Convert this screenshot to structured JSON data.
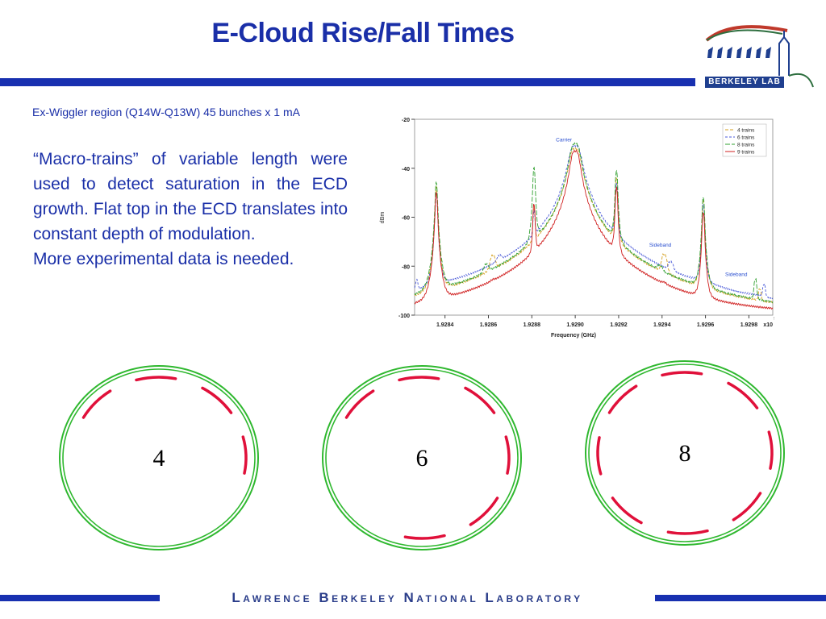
{
  "header": {
    "title": "E-Cloud Rise/Fall Times",
    "logo_text": "BERKELEY LAB"
  },
  "subtitle": "Ex-Wiggler region (Q14W-Q13W) 45 bunches x 1 mA",
  "body": {
    "paragraph_1": "“Macro-trains” of variable length were used to detect saturation in the ECD growth. Flat top in the ECD translates into constant depth of modulation.",
    "paragraph_2": "More experimental data is needed."
  },
  "chart_data": {
    "type": "line",
    "xlabel": "Frequency (GHz)",
    "ylabel": "dBm",
    "x_multiplier": "x10",
    "x_multiplier_exp": "9",
    "xlim": [
      1.92826,
      1.92991
    ],
    "ylim": [
      -100,
      -20
    ],
    "x_ticks": [
      "1.9284",
      "1.9286",
      "1.9288",
      "1.9290",
      "1.9292",
      "1.9294",
      "1.9296",
      "1.9298"
    ],
    "y_ticks": [
      "-20",
      "-40",
      "-60",
      "-80",
      "-100"
    ],
    "annotations": [
      {
        "text": "Carrier",
        "x": 1.929,
        "y": -29
      },
      {
        "text": "Sideband",
        "x": 1.92943,
        "y": -72
      },
      {
        "text": "Sideband",
        "x": 1.92978,
        "y": -84
      }
    ],
    "legend": {
      "placement": "top-right",
      "entries": [
        "4 trains",
        "6 trains",
        "8 trains",
        "9 trains"
      ]
    },
    "series": [
      {
        "name": "4 trains",
        "color": "#d4a020",
        "dash": "4,2",
        "peaks": [
          [
            1.92836,
            -48,
            4e-06
          ],
          [
            1.92862,
            -77,
            1.2e-05
          ],
          [
            1.92881,
            -57,
            4e-06
          ],
          [
            1.929,
            -32,
            2.2e-05
          ],
          [
            1.92919,
            -44,
            4e-06
          ],
          [
            1.92941,
            -76,
            1.2e-05
          ],
          [
            1.92959,
            -53,
            4e-06
          ],
          [
            1.92985,
            -91,
            6e-06
          ]
        ]
      },
      {
        "name": "6 trains",
        "color": "#4a5ad8",
        "dash": "3,2",
        "peaks": [
          [
            1.92827,
            -88,
            6e-06
          ],
          [
            1.92836,
            -50,
            4e-06
          ],
          [
            1.92865,
            -80,
            1.2e-05
          ],
          [
            1.92881,
            -58,
            4e-06
          ],
          [
            1.929,
            -31,
            2.4e-05
          ],
          [
            1.92919,
            -46,
            4e-06
          ],
          [
            1.92944,
            -81,
            1.2e-05
          ],
          [
            1.92959,
            -55,
            4e-06
          ],
          [
            1.92987,
            -89,
            6e-06
          ]
        ]
      },
      {
        "name": "8 trains",
        "color": "#30a030",
        "dash": "6,2",
        "peaks": [
          [
            1.92836,
            -46,
            4e-06
          ],
          [
            1.92859,
            -82,
            1.2e-05
          ],
          [
            1.92881,
            -40,
            4e-06
          ],
          [
            1.929,
            -30,
            2e-05
          ],
          [
            1.92919,
            -41,
            4e-06
          ],
          [
            1.92939,
            -84,
            1.2e-05
          ],
          [
            1.92959,
            -52,
            4e-06
          ],
          [
            1.92983,
            -86,
            6e-06
          ]
        ]
      },
      {
        "name": "9 trains",
        "color": "#d02020",
        "dash": "",
        "peaks": [
          [
            1.92836,
            -50,
            4e-06
          ],
          [
            1.92862,
            -96,
            1e-05
          ],
          [
            1.92881,
            -55,
            4e-06
          ],
          [
            1.929,
            -33,
            1.8e-05
          ],
          [
            1.92919,
            -48,
            4e-06
          ],
          [
            1.92941,
            -96,
            1e-05
          ],
          [
            1.92959,
            -58,
            4e-06
          ]
        ]
      }
    ]
  },
  "rings": [
    {
      "label": "4",
      "trains": 4
    },
    {
      "label": "6",
      "trains": 6
    },
    {
      "label": "8",
      "trains": 8
    }
  ],
  "footer": {
    "text": "Lawrence Berkeley National Laboratory"
  },
  "colors": {
    "title_blue": "#1a2fa8",
    "bar_blue": "#1830b0",
    "ring_green": "#2fb82f",
    "bunch_red": "#e0103a"
  }
}
